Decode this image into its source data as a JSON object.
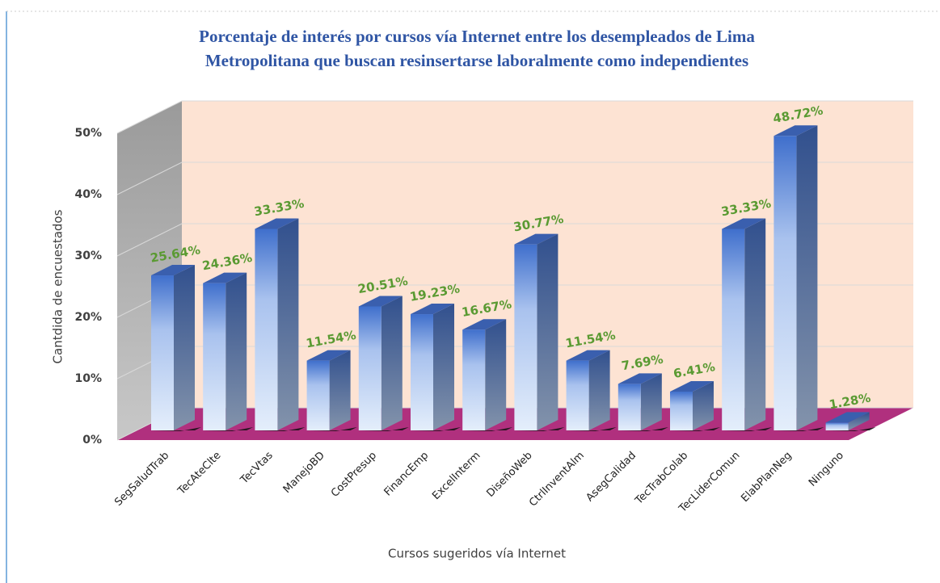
{
  "chart_data": {
    "type": "bar3d",
    "title": [
      "Porcentaje de interés por cursos vía Internet entre los desempleados de Lima",
      "Metropolitana que buscan resinsertarse laboralmente como independientes"
    ],
    "x_label": "Cursos sugeridos vía Internet",
    "y_label": "Cantdida de encuestados",
    "categories": [
      "SegSaludTrab",
      "TecAteClte",
      "TecVtas",
      "ManejoBD",
      "CostPresup",
      "FinancEmp",
      "ExcelInterm",
      "DiseñoWeb",
      "CtrlInventAlm",
      "AsegCalidad",
      "TecTrabColab",
      "TecLiderComun",
      "ElabPlanNeg",
      "Ninguno"
    ],
    "values": [
      25.64,
      24.36,
      33.33,
      11.54,
      20.51,
      19.23,
      16.67,
      30.77,
      11.54,
      7.69,
      6.41,
      33.33,
      48.72,
      1.28
    ],
    "value_labels": [
      "25.64%",
      "24.36%",
      "33.33%",
      "11.54%",
      "20.51%",
      "19.23%",
      "16.67%",
      "30.77%",
      "11.54%",
      "7.69%",
      "6.41%",
      "33.33%",
      "48.72%",
      "1.28%"
    ],
    "ylim": [
      0,
      50
    ],
    "yticks": [
      {
        "value": 0,
        "label": "0%"
      },
      {
        "value": 10,
        "label": "10%"
      },
      {
        "value": 20,
        "label": "20%"
      },
      {
        "value": 30,
        "label": "30%"
      },
      {
        "value": 40,
        "label": "40%"
      },
      {
        "value": 50,
        "label": "50%"
      }
    ],
    "grid": true
  }
}
